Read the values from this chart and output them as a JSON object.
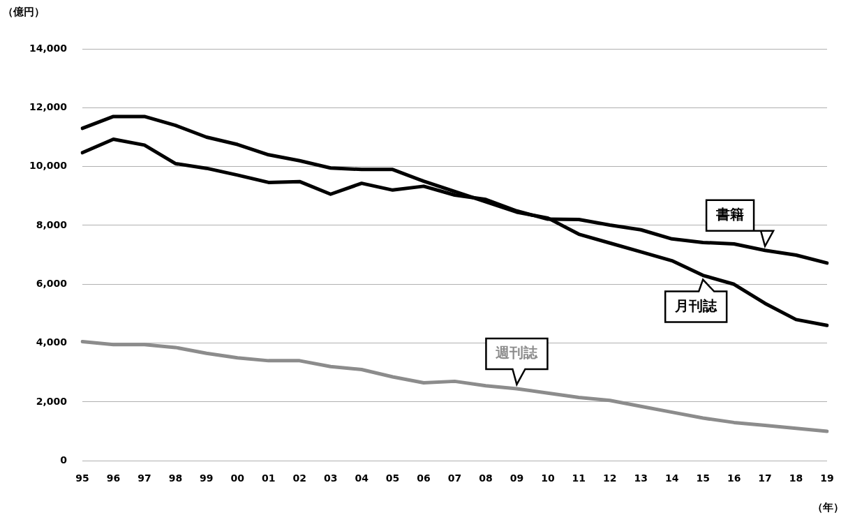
{
  "chart_data": {
    "type": "line",
    "ylabel": "（億円）",
    "xlabel": "（年）",
    "categories": [
      "95",
      "96",
      "97",
      "98",
      "99",
      "00",
      "01",
      "02",
      "03",
      "04",
      "05",
      "06",
      "07",
      "08",
      "09",
      "10",
      "11",
      "12",
      "13",
      "14",
      "15",
      "16",
      "17",
      "18",
      "19"
    ],
    "series": [
      {
        "name": "書籍",
        "color": "#000000",
        "values": [
          10470,
          10930,
          10730,
          10100,
          9940,
          9710,
          9460,
          9490,
          9060,
          9430,
          9200,
          9330,
          9030,
          8880,
          8490,
          8210,
          8200,
          8010,
          7850,
          7540,
          7420,
          7370,
          7150,
          6990,
          6720
        ]
      },
      {
        "name": "月刊誌",
        "color": "#000000",
        "values": [
          11300,
          11700,
          11700,
          11400,
          11000,
          10750,
          10400,
          10200,
          9950,
          9900,
          9900,
          9500,
          9150,
          8800,
          8450,
          8250,
          7700,
          7400,
          7100,
          6800,
          6300,
          6000,
          5350,
          4800,
          4600
        ]
      },
      {
        "name": "週刊誌",
        "color": "#8c8c8c",
        "values": [
          4050,
          3950,
          3950,
          3850,
          3650,
          3500,
          3400,
          3400,
          3200,
          3100,
          2850,
          2650,
          2700,
          2550,
          2450,
          2300,
          2150,
          2050,
          1850,
          1650,
          1450,
          1300,
          1200,
          1100,
          1000
        ]
      }
    ],
    "ylim": [
      0,
      14000
    ],
    "yticks": [
      0,
      {
        "value": 2000,
        "label": "2,000"
      },
      {
        "value": 4000,
        "label": "4,000"
      },
      {
        "value": 6000,
        "label": "6,000"
      },
      {
        "value": 8000,
        "label": "8,000"
      },
      {
        "value": 10000,
        "label": "10,000"
      },
      {
        "value": 12000,
        "label": "12,000"
      },
      {
        "value": 14000,
        "label": "14,000"
      }
    ],
    "grid": "y",
    "legend": false,
    "marker": "none",
    "line_style": "solid"
  }
}
